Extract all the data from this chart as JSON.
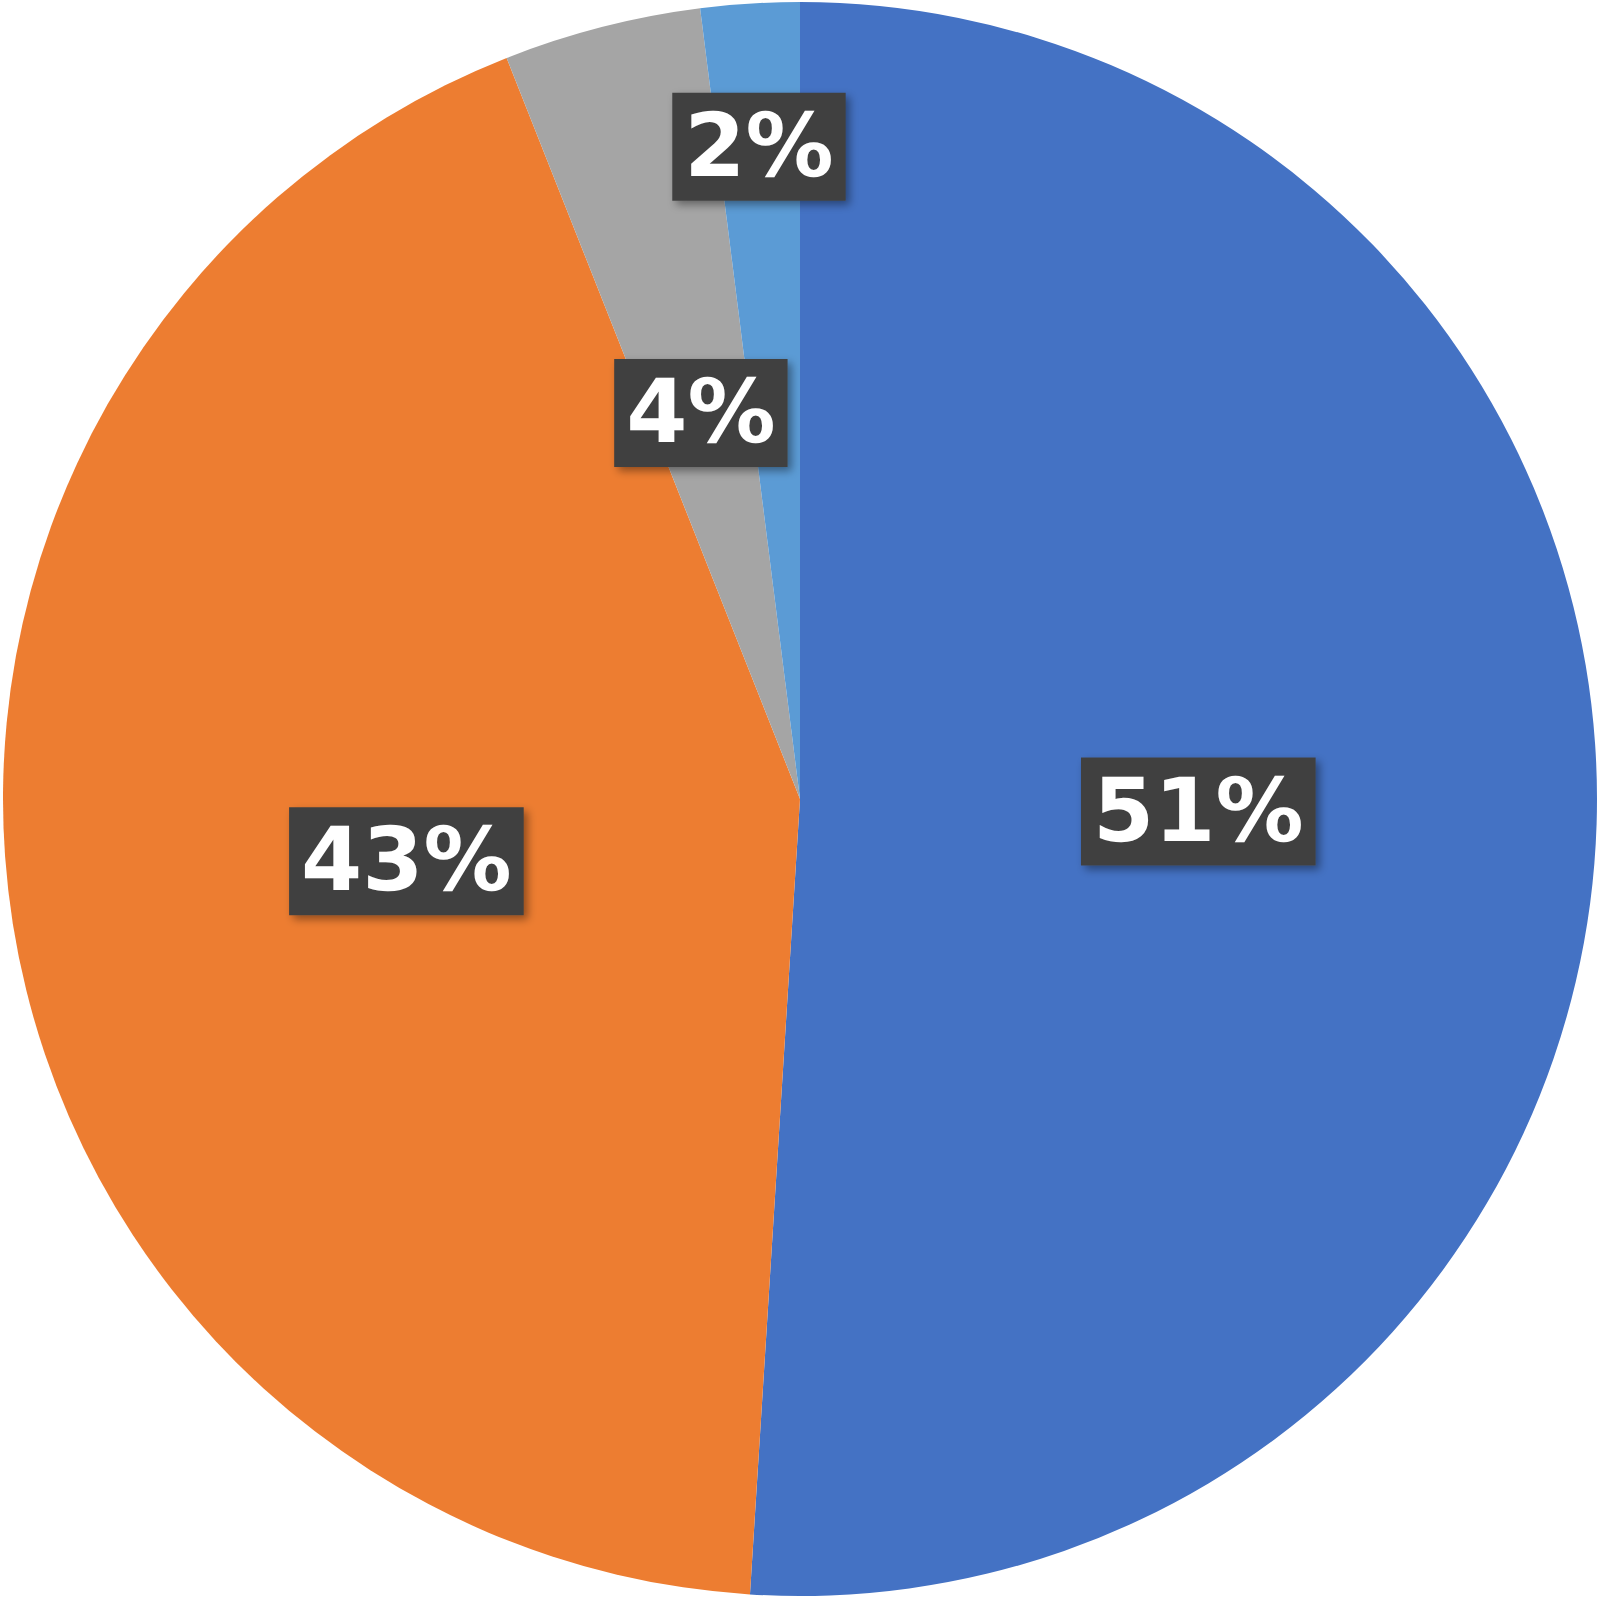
{
  "chart_data": {
    "type": "pie",
    "categories": [
      null,
      null,
      null,
      null
    ],
    "values": [
      51,
      43,
      4,
      2
    ],
    "colors": [
      "#4472c4",
      "#ed7d31",
      "#a5a5a5",
      "#5b9bd5"
    ],
    "value_labels": [
      "51%",
      "43%",
      "4%",
      "2%"
    ]
  }
}
